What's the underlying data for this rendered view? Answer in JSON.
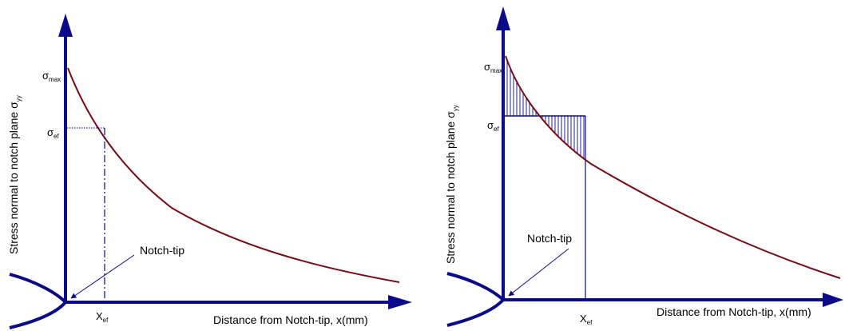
{
  "colors": {
    "axis": "#0b0b8a",
    "curve": "#7a0a12",
    "guide": "#0b0b8a"
  },
  "left_panel": {
    "y_axis_label": "Stress normal to notch plane σ",
    "y_axis_sub": "yy",
    "x_axis_label": "Distance from Notch-tip, x(mm)",
    "sigma_max": {
      "symbol": "σ",
      "sub": "max"
    },
    "sigma_ef": {
      "symbol": "σ",
      "sub": "ef"
    },
    "x_ef": {
      "symbol": "X",
      "sub": "ef"
    },
    "notch_tip": "Notch-tip"
  },
  "right_panel": {
    "y_axis_label": "Stress normal to notch plane σ",
    "y_axis_sub": "yy",
    "x_axis_label": "Distance from Notch-tip, x(mm)",
    "sigma_max": {
      "symbol": "σ",
      "sub": "max"
    },
    "sigma_ef": {
      "symbol": "σ",
      "sub": "ef"
    },
    "x_ef": {
      "symbol": "X",
      "sub": "ef"
    },
    "notch_tip": "Notch-tip"
  }
}
